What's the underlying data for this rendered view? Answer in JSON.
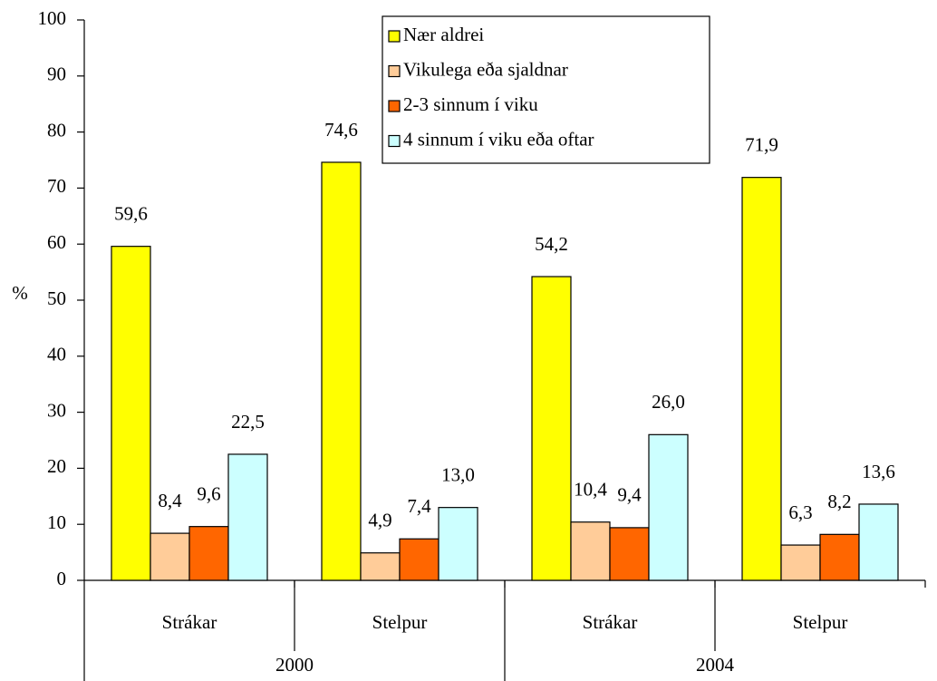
{
  "chart_data": {
    "type": "bar",
    "y_label": "%",
    "categories": [
      "Strákar",
      "Stelpur",
      "Strákar",
      "Stelpur"
    ],
    "groups": [
      "2000",
      "2004"
    ],
    "series": [
      {
        "name": "Nær aldrei",
        "color": "#ffff00",
        "values": [
          59.6,
          74.6,
          54.2,
          71.9
        ],
        "value_labels": [
          "59,6",
          "74,6",
          "54,2",
          "71,9"
        ]
      },
      {
        "name": "Vikulega eða sjaldnar",
        "color": "#ffcc99",
        "values": [
          8.4,
          4.9,
          10.4,
          6.3
        ],
        "value_labels": [
          "8,4",
          "4,9",
          "10,4",
          "6,3"
        ]
      },
      {
        "name": "2-3 sinnum í viku",
        "color": "#ff6600",
        "values": [
          9.6,
          7.4,
          9.4,
          8.2
        ],
        "value_labels": [
          "9,6",
          "7,4",
          "9,4",
          "8,2"
        ]
      },
      {
        "name": "4 sinnum í viku eða oftar",
        "color": "#ccffff",
        "values": [
          22.5,
          13.0,
          26.0,
          13.6
        ],
        "value_labels": [
          "22,5",
          "13,0",
          "26,0",
          "13,6"
        ]
      }
    ],
    "ylim": [
      0,
      100
    ],
    "yticks": [
      0,
      10,
      20,
      30,
      40,
      50,
      60,
      70,
      80,
      90,
      100
    ],
    "legend": "top"
  }
}
